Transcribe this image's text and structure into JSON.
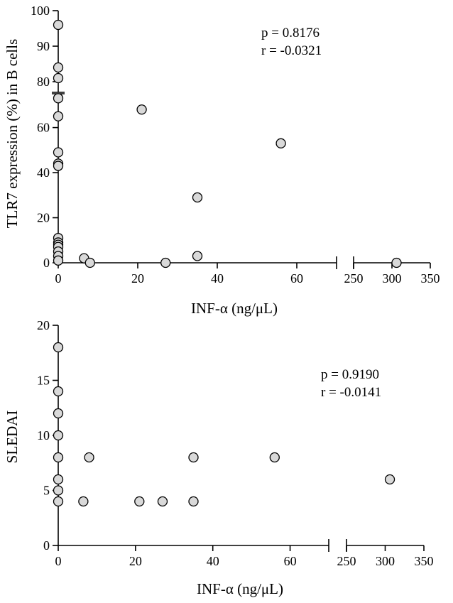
{
  "chart_data": [
    {
      "type": "scatter",
      "xlabel": "INF-α (ng/μL)",
      "ylabel": "TLR7 expression (%) in B cells",
      "annotations": [
        "p = 0.8176",
        "r = -0.0321"
      ],
      "x_segments": [
        {
          "range": [
            0,
            70
          ],
          "ticks": [
            0,
            20,
            40,
            60
          ],
          "tick_labels": [
            "0",
            "20",
            "40",
            "60"
          ]
        },
        {
          "range": [
            250,
            350
          ],
          "ticks": [
            250,
            300,
            350
          ],
          "tick_labels": [
            "250",
            "300",
            "350"
          ]
        }
      ],
      "y_segments": [
        {
          "range": [
            0,
            75
          ],
          "ticks": [
            0,
            20,
            40,
            60
          ],
          "tick_labels": [
            "0",
            "20",
            "40",
            "60"
          ]
        },
        {
          "range": [
            77,
            100
          ],
          "ticks": [
            80,
            90,
            100
          ],
          "tick_labels": [
            "80",
            "90",
            "100"
          ]
        }
      ],
      "grid": false,
      "marker_color": "#d9d9d9",
      "points": [
        {
          "x": 0,
          "y": 96
        },
        {
          "x": 0,
          "y": 84
        },
        {
          "x": 0,
          "y": 81
        },
        {
          "x": 0,
          "y": 73
        },
        {
          "x": 0,
          "y": 65
        },
        {
          "x": 0,
          "y": 49
        },
        {
          "x": 0,
          "y": 44
        },
        {
          "x": 0,
          "y": 43
        },
        {
          "x": 0,
          "y": 11
        },
        {
          "x": 0,
          "y": 9
        },
        {
          "x": 0,
          "y": 8
        },
        {
          "x": 0,
          "y": 7
        },
        {
          "x": 0,
          "y": 5
        },
        {
          "x": 0,
          "y": 3
        },
        {
          "x": 0,
          "y": 1
        },
        {
          "x": 6.5,
          "y": 2
        },
        {
          "x": 8,
          "y": 0
        },
        {
          "x": 21,
          "y": 68
        },
        {
          "x": 27,
          "y": 0
        },
        {
          "x": 35,
          "y": 29
        },
        {
          "x": 35,
          "y": 3
        },
        {
          "x": 56,
          "y": 53
        },
        {
          "x": 306,
          "y": 0
        }
      ]
    },
    {
      "type": "scatter",
      "xlabel": "INF-α (ng/μL)",
      "ylabel": "SLEDAI",
      "annotations": [
        "p = 0.9190",
        "r = -0.0141"
      ],
      "x_segments": [
        {
          "range": [
            0,
            70
          ],
          "ticks": [
            0,
            20,
            40,
            60
          ],
          "tick_labels": [
            "0",
            "20",
            "40",
            "60"
          ]
        },
        {
          "range": [
            250,
            350
          ],
          "ticks": [
            250,
            300,
            350
          ],
          "tick_labels": [
            "250",
            "300",
            "350"
          ]
        }
      ],
      "y_segments": [
        {
          "range": [
            0,
            20
          ],
          "ticks": [
            0,
            5,
            10,
            15,
            20
          ],
          "tick_labels": [
            "0",
            "5",
            "10",
            "15",
            "20"
          ]
        }
      ],
      "grid": false,
      "marker_color": "#d9d9d9",
      "points": [
        {
          "x": 0,
          "y": 18
        },
        {
          "x": 0,
          "y": 14
        },
        {
          "x": 0,
          "y": 12
        },
        {
          "x": 0,
          "y": 10
        },
        {
          "x": 0,
          "y": 8
        },
        {
          "x": 0,
          "y": 6
        },
        {
          "x": 0,
          "y": 5
        },
        {
          "x": 0,
          "y": 4
        },
        {
          "x": 6.5,
          "y": 4
        },
        {
          "x": 8,
          "y": 8
        },
        {
          "x": 21,
          "y": 4
        },
        {
          "x": 27,
          "y": 4
        },
        {
          "x": 35,
          "y": 8
        },
        {
          "x": 35,
          "y": 4
        },
        {
          "x": 56,
          "y": 8
        },
        {
          "x": 306,
          "y": 6
        }
      ]
    }
  ]
}
